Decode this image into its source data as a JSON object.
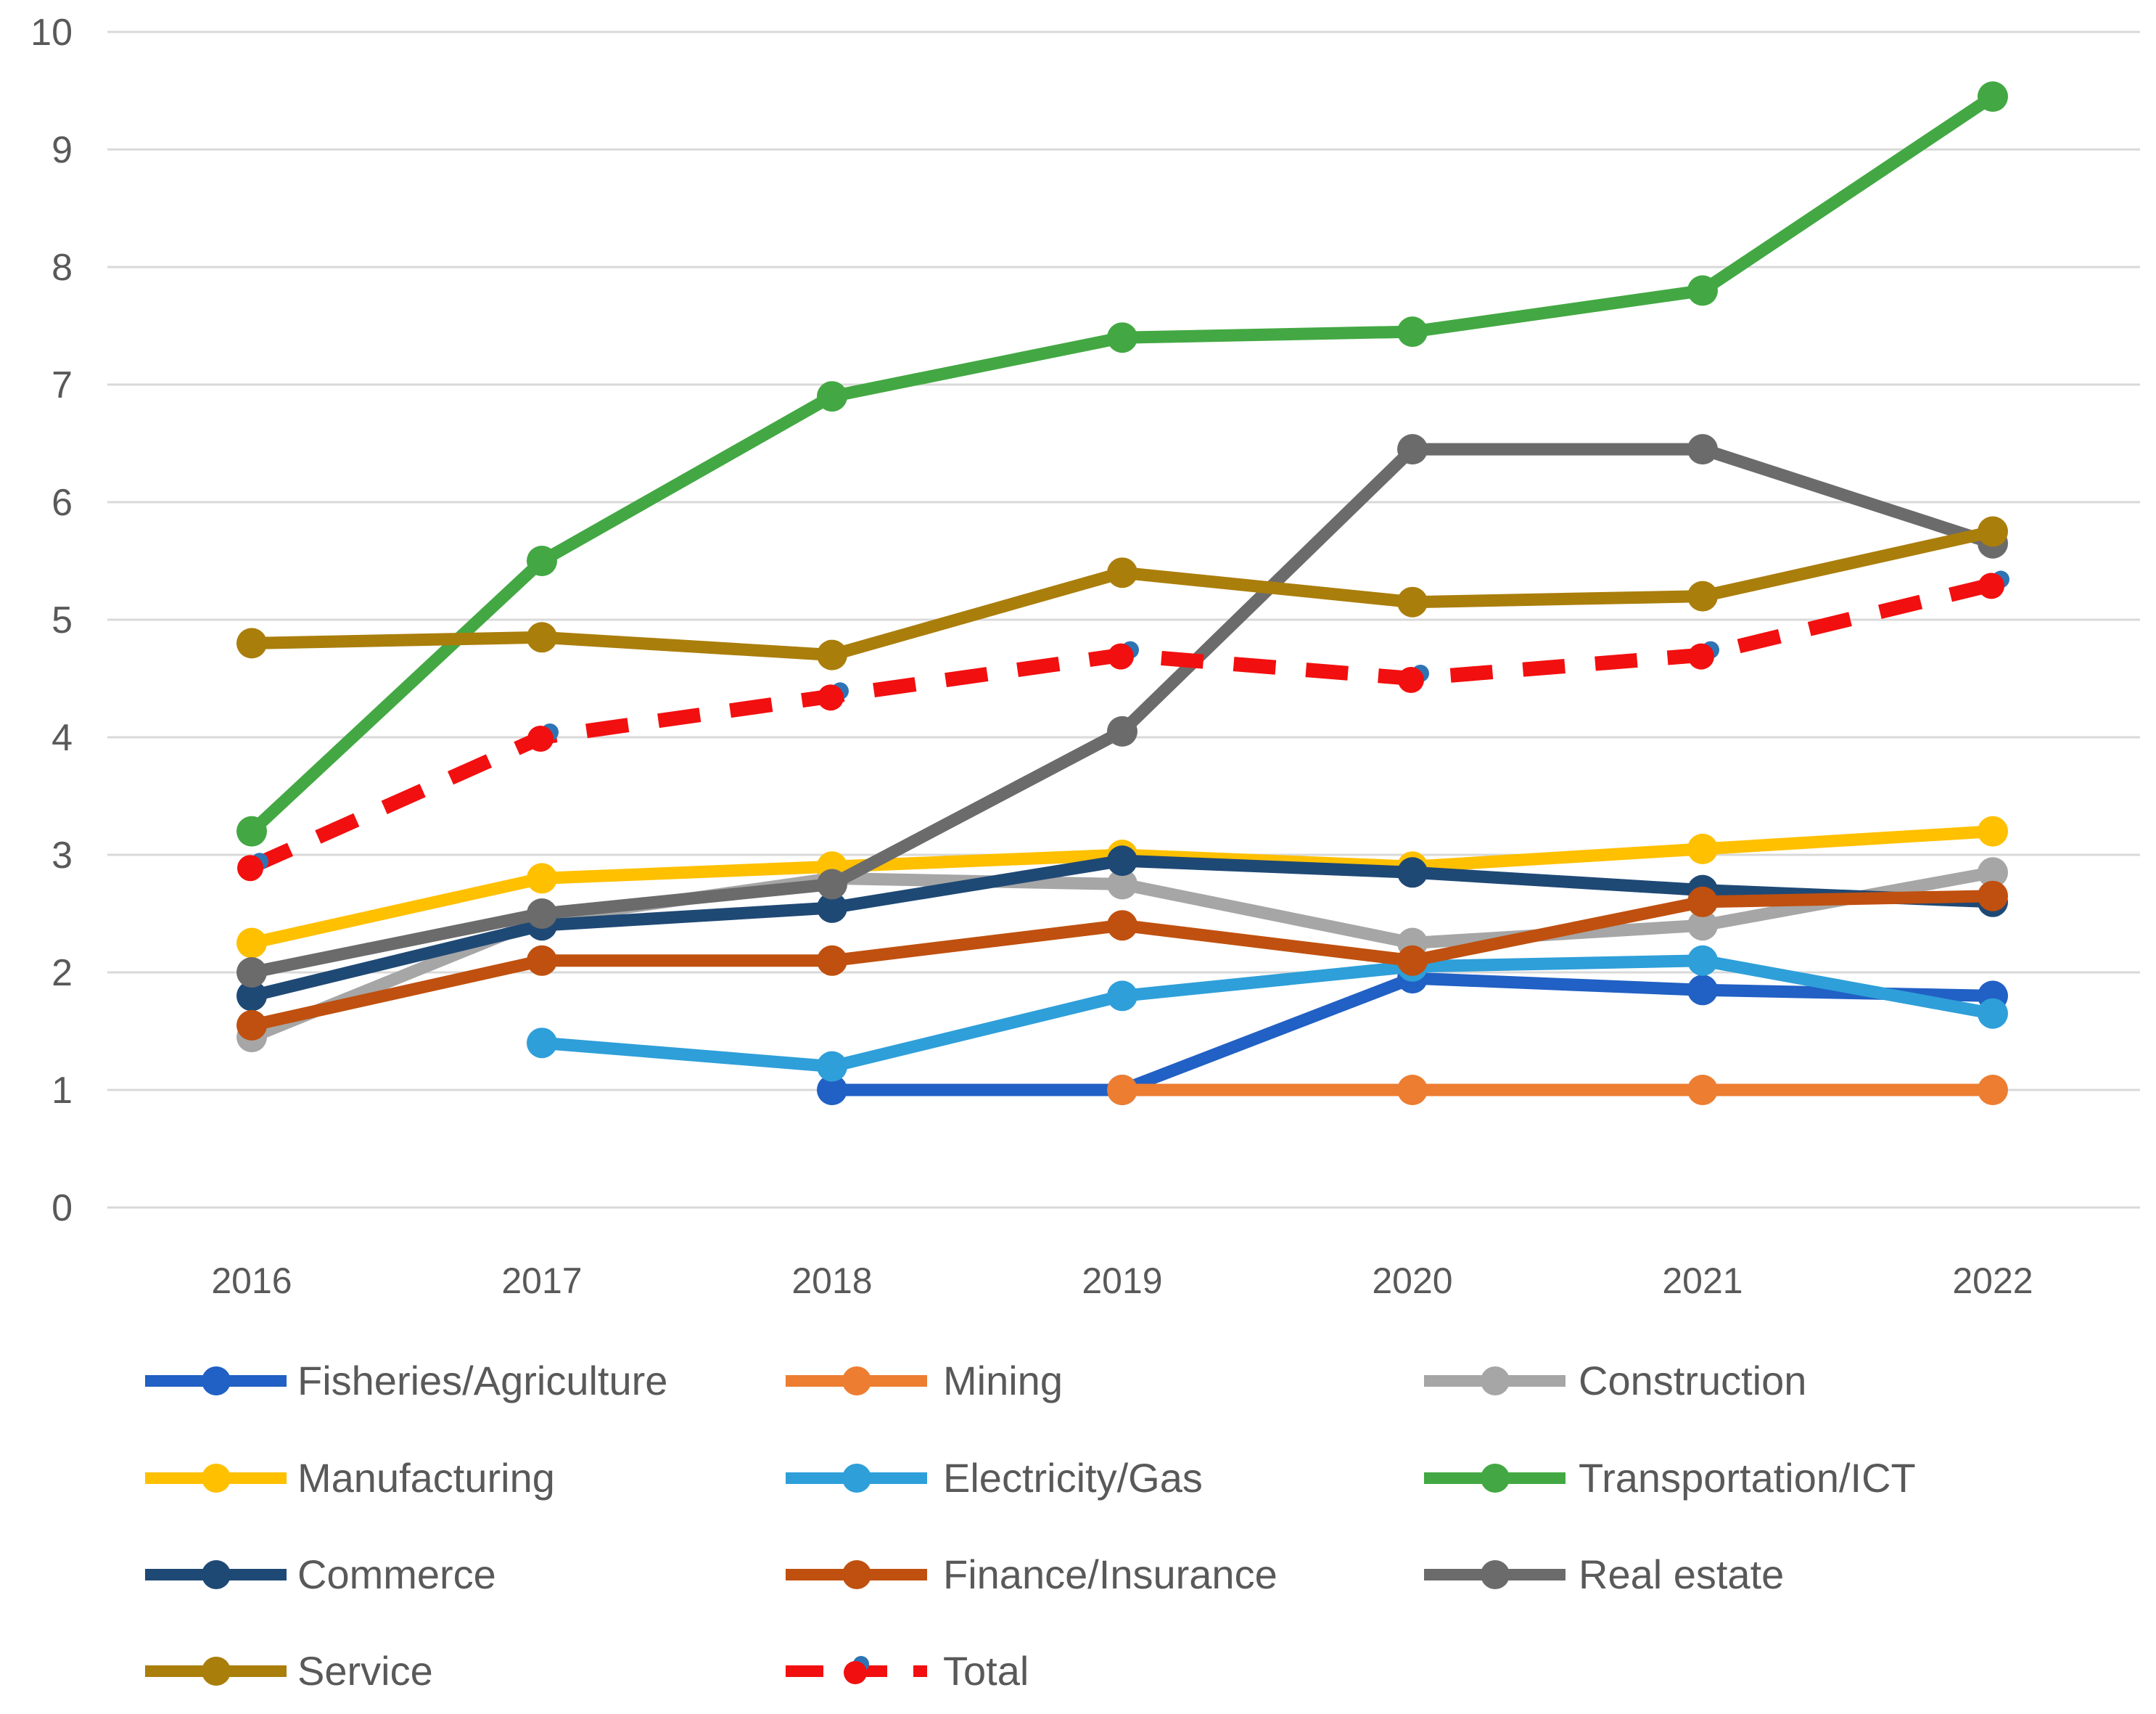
{
  "chart_data": {
    "type": "line",
    "title": "",
    "xlabel": "",
    "ylabel": "",
    "x_labels": [
      "2016",
      "2017",
      "2018",
      "2019",
      "2020",
      "2021",
      "2022"
    ],
    "y_ticks": [
      "0",
      "1",
      "2",
      "3",
      "4",
      "5",
      "6",
      "7",
      "8",
      "9",
      "10"
    ],
    "ylim": [
      0,
      10
    ],
    "grid": true,
    "legend_position": "bottom",
    "colors": {
      "grid": "#D9D9D9",
      "axis_text": "#595959",
      "background": "#FFFFFF",
      "total_marker_accent": "#2E74B5"
    },
    "series": [
      {
        "id": "fisheries-agriculture",
        "name": "Fisheries/Agriculture",
        "color": "#2160C4",
        "dash": false,
        "values": [
          null,
          null,
          1.0,
          1.0,
          1.95,
          1.85,
          1.8
        ]
      },
      {
        "id": "mining",
        "name": "Mining",
        "color": "#ED7D31",
        "dash": false,
        "values": [
          null,
          null,
          null,
          1.0,
          1.0,
          1.0,
          1.0
        ]
      },
      {
        "id": "construction",
        "name": "Construction",
        "color": "#A6A6A6",
        "dash": false,
        "values": [
          1.45,
          2.45,
          2.8,
          2.75,
          2.25,
          2.4,
          2.85
        ]
      },
      {
        "id": "manufacturing",
        "name": "Manufacturing",
        "color": "#FFC000",
        "dash": false,
        "values": [
          2.25,
          2.8,
          2.9,
          3.0,
          2.9,
          3.05,
          3.2
        ]
      },
      {
        "id": "electricity-gas",
        "name": "Electricity/Gas",
        "color": "#2E9FD9",
        "dash": false,
        "values": [
          null,
          1.4,
          1.2,
          1.8,
          2.05,
          2.1,
          1.65
        ]
      },
      {
        "id": "transportation-ict",
        "name": "Transportation/ICT",
        "color": "#43A843",
        "dash": false,
        "values": [
          3.2,
          5.5,
          6.9,
          7.4,
          7.45,
          7.8,
          9.45
        ]
      },
      {
        "id": "commerce",
        "name": "Commerce",
        "color": "#1F4975",
        "dash": false,
        "values": [
          1.8,
          2.4,
          2.55,
          2.95,
          2.85,
          2.7,
          2.6
        ]
      },
      {
        "id": "finance-insurance",
        "name": "Finance/Insurance",
        "color": "#C0500F",
        "dash": false,
        "values": [
          1.55,
          2.1,
          2.1,
          2.4,
          2.1,
          2.6,
          2.65
        ]
      },
      {
        "id": "real-estate",
        "name": "Real estate",
        "color": "#6B6B6B",
        "dash": false,
        "values": [
          2.0,
          2.5,
          2.75,
          4.05,
          6.45,
          6.45,
          5.65
        ]
      },
      {
        "id": "service",
        "name": "Service",
        "color": "#AA7E0B",
        "dash": false,
        "values": [
          4.8,
          4.85,
          4.7,
          5.4,
          5.15,
          5.2,
          5.75
        ]
      },
      {
        "id": "total",
        "name": "Total",
        "color": "#F20F0F",
        "dash": true,
        "marker_accent": "#2E74B5",
        "values": [
          2.9,
          4.0,
          4.35,
          4.7,
          4.5,
          4.7,
          5.3
        ]
      }
    ]
  }
}
